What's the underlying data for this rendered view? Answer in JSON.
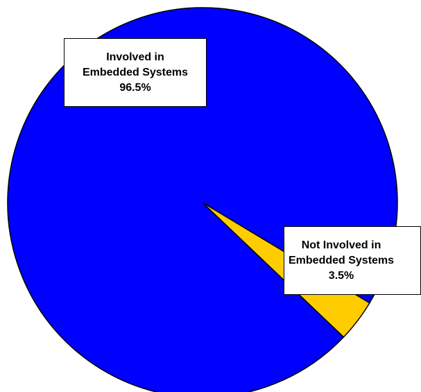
{
  "chart_data": {
    "type": "pie",
    "title": "",
    "slices": [
      {
        "label_line1": "Involved in",
        "label_line2": "Embedded Systems",
        "value": 96.5,
        "value_label": "96.5%",
        "color": "#0000FF"
      },
      {
        "label_line1": "Not Involved in",
        "label_line2": "Embedded Systems",
        "value": 3.5,
        "value_label": "3.5%",
        "color": "#FFCC00"
      }
    ],
    "legend": "none",
    "data_labels": "callout boxes with name and percent"
  }
}
